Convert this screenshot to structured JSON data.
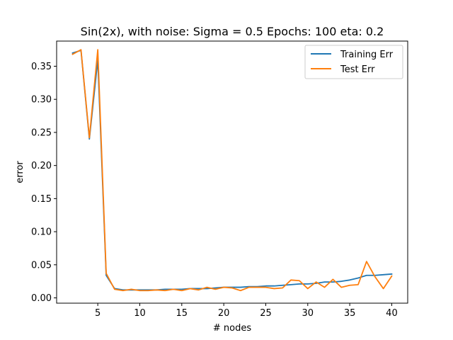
{
  "chart_data": {
    "type": "line",
    "title": "Sin(2x), with noise: Sigma = 0.5 Epochs: 100 eta: 0.2",
    "xlabel": "# nodes",
    "ylabel": "error",
    "xlim": [
      0.1,
      41.9
    ],
    "ylim": [
      -0.008,
      0.388
    ],
    "xticks": [
      5,
      10,
      15,
      20,
      25,
      30,
      35,
      40
    ],
    "yticks": [
      0.0,
      0.05,
      0.1,
      0.15,
      0.2,
      0.25,
      0.3,
      0.35
    ],
    "ytick_labels": [
      "0.00",
      "0.05",
      "0.10",
      "0.15",
      "0.20",
      "0.25",
      "0.30",
      "0.35"
    ],
    "legend_position": "top-right",
    "grid": false,
    "x": [
      2,
      3,
      4,
      5,
      6,
      7,
      8,
      9,
      10,
      11,
      12,
      13,
      14,
      15,
      16,
      17,
      18,
      19,
      20,
      21,
      22,
      23,
      24,
      25,
      26,
      27,
      28,
      29,
      30,
      31,
      32,
      33,
      34,
      35,
      36,
      37,
      38,
      39,
      40
    ],
    "series": [
      {
        "name": "Training Err",
        "color": "#1f77b4",
        "values": [
          0.37,
          0.374,
          0.24,
          0.36,
          0.034,
          0.014,
          0.012,
          0.012,
          0.012,
          0.012,
          0.012,
          0.013,
          0.013,
          0.013,
          0.014,
          0.014,
          0.014,
          0.015,
          0.016,
          0.016,
          0.016,
          0.017,
          0.017,
          0.018,
          0.018,
          0.019,
          0.02,
          0.021,
          0.021,
          0.022,
          0.024,
          0.024,
          0.025,
          0.027,
          0.03,
          0.034,
          0.034,
          0.035,
          0.036
        ]
      },
      {
        "name": "Test Err",
        "color": "#ff7f0e",
        "values": [
          0.368,
          0.375,
          0.242,
          0.375,
          0.037,
          0.013,
          0.011,
          0.013,
          0.011,
          0.011,
          0.012,
          0.011,
          0.013,
          0.011,
          0.014,
          0.012,
          0.016,
          0.013,
          0.016,
          0.015,
          0.011,
          0.016,
          0.016,
          0.016,
          0.014,
          0.015,
          0.027,
          0.026,
          0.014,
          0.024,
          0.016,
          0.028,
          0.016,
          0.019,
          0.02,
          0.055,
          0.032,
          0.014,
          0.033
        ]
      }
    ]
  }
}
